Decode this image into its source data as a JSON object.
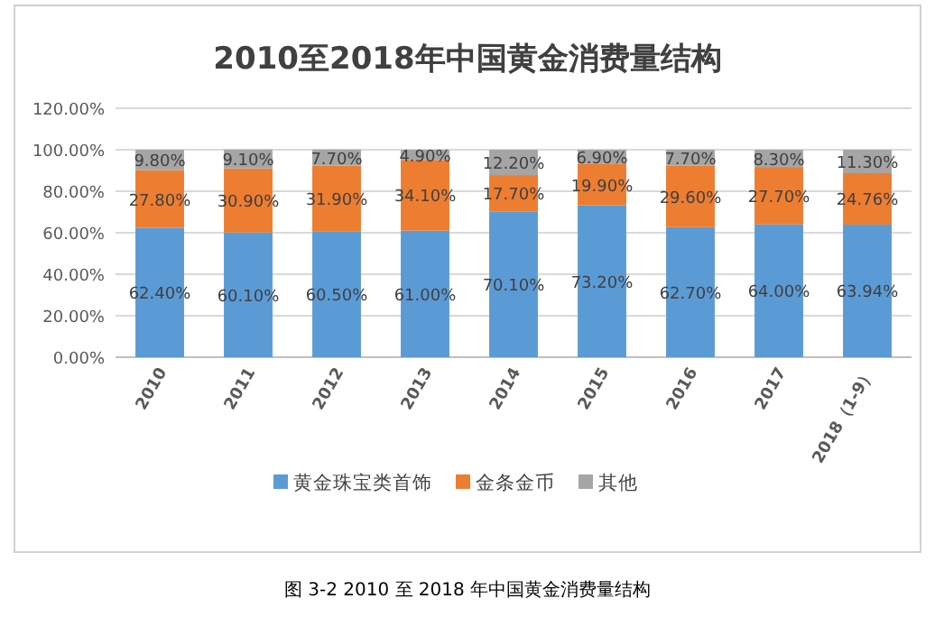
{
  "chart_data": {
    "type": "bar",
    "stacked": true,
    "title": "2010至2018年中国黄金消费量结构",
    "categories": [
      "2010",
      "2011",
      "2012",
      "2013",
      "2014",
      "2015",
      "2016",
      "2017",
      "2018（1-9）"
    ],
    "series": [
      {
        "name": "黄金珠宝类首饰",
        "color": "#5b9bd5",
        "values": [
          62.4,
          60.1,
          60.5,
          61.0,
          70.1,
          73.2,
          62.7,
          64.0,
          63.94
        ],
        "value_labels": [
          "62.40%",
          "60.10%",
          "60.50%",
          "61.00%",
          "70.10%",
          "73.20%",
          "62.70%",
          "64.00%",
          "63.94%"
        ]
      },
      {
        "name": "金条金币",
        "color": "#ed7d31",
        "values": [
          27.8,
          30.9,
          31.9,
          34.1,
          17.7,
          19.9,
          29.6,
          27.7,
          24.76
        ],
        "value_labels": [
          "27.80%",
          "30.90%",
          "31.90%",
          "34.10%",
          "17.70%",
          "19.90%",
          "29.60%",
          "27.70%",
          "24.76%"
        ]
      },
      {
        "name": "其他",
        "color": "#a5a5a5",
        "values": [
          9.8,
          9.1,
          7.7,
          4.9,
          12.2,
          6.9,
          7.7,
          8.3,
          11.3
        ],
        "value_labels": [
          "9.80%",
          "9.10%",
          "7.70%",
          "4.90%",
          "12.20%",
          "6.90%",
          "7.70%",
          "8.30%",
          "11.30%"
        ]
      }
    ],
    "ylim": [
      0,
      120
    ],
    "yticks": [
      {
        "value": 0,
        "label": "0.00%"
      },
      {
        "value": 20,
        "label": "20.00%"
      },
      {
        "value": 40,
        "label": "40.00%"
      },
      {
        "value": 60,
        "label": "60.00%"
      },
      {
        "value": 80,
        "label": "80.00%"
      },
      {
        "value": 100,
        "label": "100.00%"
      },
      {
        "value": 120,
        "label": "120.00%"
      }
    ],
    "grid": "y",
    "legend": "bottom",
    "annotations": [
      "图 3-2 2010 至 2018 年中国黄金消费量结构"
    ]
  }
}
